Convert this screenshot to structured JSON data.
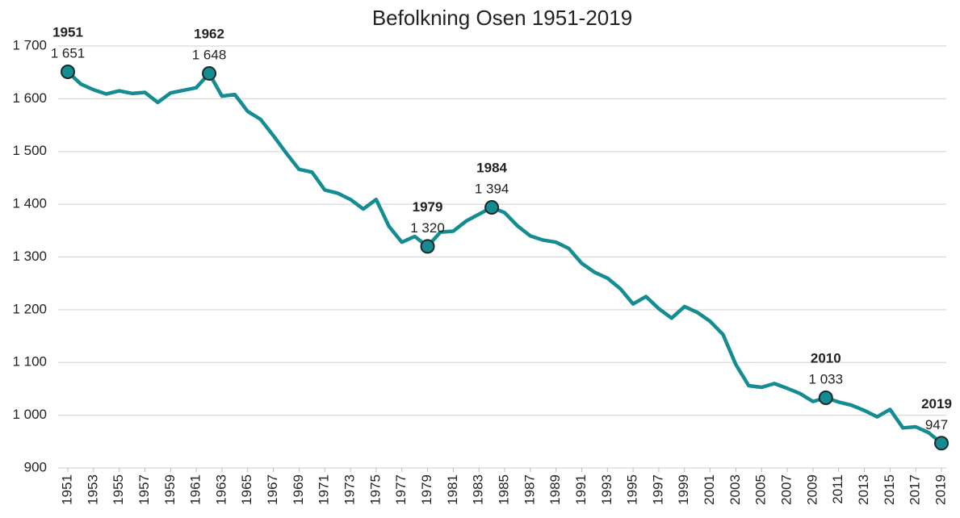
{
  "chart_data": {
    "type": "line",
    "title": "Befolkning Osen 1951-2019",
    "x": [
      1951,
      1952,
      1953,
      1954,
      1955,
      1956,
      1957,
      1958,
      1959,
      1960,
      1961,
      1962,
      1963,
      1964,
      1965,
      1966,
      1967,
      1968,
      1969,
      1970,
      1971,
      1972,
      1973,
      1974,
      1975,
      1976,
      1977,
      1978,
      1979,
      1980,
      1981,
      1982,
      1983,
      1984,
      1985,
      1986,
      1987,
      1988,
      1989,
      1990,
      1991,
      1992,
      1993,
      1994,
      1995,
      1996,
      1997,
      1998,
      1999,
      2000,
      2001,
      2002,
      2003,
      2004,
      2005,
      2006,
      2007,
      2008,
      2009,
      2010,
      2011,
      2012,
      2013,
      2014,
      2015,
      2016,
      2017,
      2018,
      2019
    ],
    "series": [
      {
        "color": "#138c92",
        "values": [
          1651,
          1628,
          1617,
          1609,
          1615,
          1610,
          1612,
          1593,
          1611,
          1616,
          1621,
          1648,
          1605,
          1608,
          1576,
          1561,
          1530,
          1497,
          1466,
          1461,
          1427,
          1421,
          1409,
          1391,
          1409,
          1358,
          1328,
          1339,
          1320,
          1347,
          1349,
          1368,
          1381,
          1394,
          1384,
          1359,
          1340,
          1332,
          1328,
          1316,
          1288,
          1271,
          1260,
          1240,
          1211,
          1225,
          1202,
          1184,
          1206,
          1195,
          1178,
          1153,
          1096,
          1056,
          1053,
          1060,
          1051,
          1041,
          1026,
          1033,
          1025,
          1019,
          1009,
          997,
          1011,
          976,
          978,
          967,
          947
        ]
      }
    ],
    "xlim": [
      1951,
      2019
    ],
    "xticks": [
      1951,
      1953,
      1955,
      1957,
      1959,
      1961,
      1963,
      1965,
      1967,
      1969,
      1971,
      1973,
      1975,
      1977,
      1979,
      1981,
      1983,
      1985,
      1987,
      1989,
      1991,
      1993,
      1995,
      1997,
      1999,
      2001,
      2003,
      2005,
      2007,
      2009,
      2011,
      2013,
      2015,
      2017,
      2019
    ],
    "ylim": [
      900,
      1700
    ],
    "yticks": [
      900,
      {
        "value": 1000,
        "label": "1 000"
      },
      {
        "value": 1100,
        "label": "1 100"
      },
      {
        "value": 1200,
        "label": "1 200"
      },
      {
        "value": 1300,
        "label": "1 300"
      },
      {
        "value": 1400,
        "label": "1 400"
      },
      {
        "value": 1500,
        "label": "1 500"
      },
      {
        "value": 1600,
        "label": "1 600"
      },
      {
        "value": 1700,
        "label": "1 700"
      }
    ],
    "grid": true,
    "annotations": [
      {
        "x": 1951,
        "label": "1951",
        "value_label": "1 651"
      },
      {
        "x": 1962,
        "label": "1962",
        "value_label": "1 648"
      },
      {
        "x": 1979,
        "label": "1979",
        "value_label": "1 320"
      },
      {
        "x": 1984,
        "label": "1984",
        "value_label": "1 394"
      },
      {
        "x": 2010,
        "label": "2010",
        "value_label": "1 033"
      },
      {
        "x": 2019,
        "label": "2019",
        "value_label": "947"
      }
    ]
  }
}
